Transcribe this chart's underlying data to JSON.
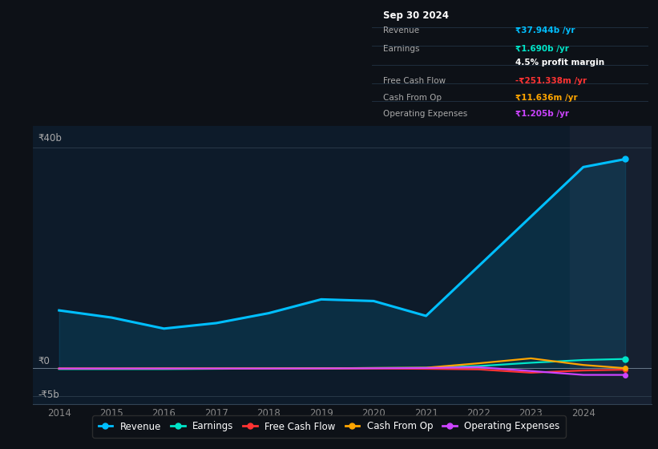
{
  "bg_color": "#0d1117",
  "plot_bg_color": "#0d1b2a",
  "title": "Sep 30 2024",
  "years": [
    2014,
    2015,
    2016,
    2017,
    2018,
    2019,
    2020,
    2021,
    2022,
    2023,
    2024,
    2024.8
  ],
  "revenue": [
    10.5,
    9.2,
    7.2,
    8.2,
    10.0,
    12.5,
    12.2,
    9.5,
    18.5,
    27.5,
    36.5,
    37.944
  ],
  "earnings": [
    -0.15,
    -0.15,
    -0.15,
    -0.1,
    -0.05,
    0.0,
    0.05,
    0.1,
    0.4,
    1.0,
    1.5,
    1.69
  ],
  "free_cash_flow": [
    -0.05,
    -0.05,
    -0.05,
    -0.05,
    -0.05,
    -0.05,
    -0.05,
    -0.1,
    -0.2,
    -0.8,
    -0.4,
    -0.251
  ],
  "cash_from_op": [
    -0.05,
    -0.05,
    -0.03,
    -0.03,
    -0.03,
    0.0,
    0.05,
    0.1,
    0.9,
    1.8,
    0.6,
    0.012
  ],
  "operating_expenses": [
    -0.05,
    -0.05,
    -0.05,
    -0.05,
    -0.05,
    -0.03,
    0.0,
    0.05,
    0.2,
    -0.5,
    -1.2,
    -1.205
  ],
  "revenue_color": "#00bfff",
  "earnings_color": "#00e5c8",
  "free_cash_flow_color": "#ff3333",
  "cash_from_op_color": "#ffa500",
  "operating_expenses_color": "#cc44ff",
  "xlim": [
    2013.5,
    2025.3
  ],
  "ylim": [
    -6.5,
    44
  ],
  "shade_start": 2023.75,
  "shade_end": 2025.3,
  "xtick_years": [
    2014,
    2015,
    2016,
    2017,
    2018,
    2019,
    2020,
    2021,
    2022,
    2023,
    2024
  ]
}
